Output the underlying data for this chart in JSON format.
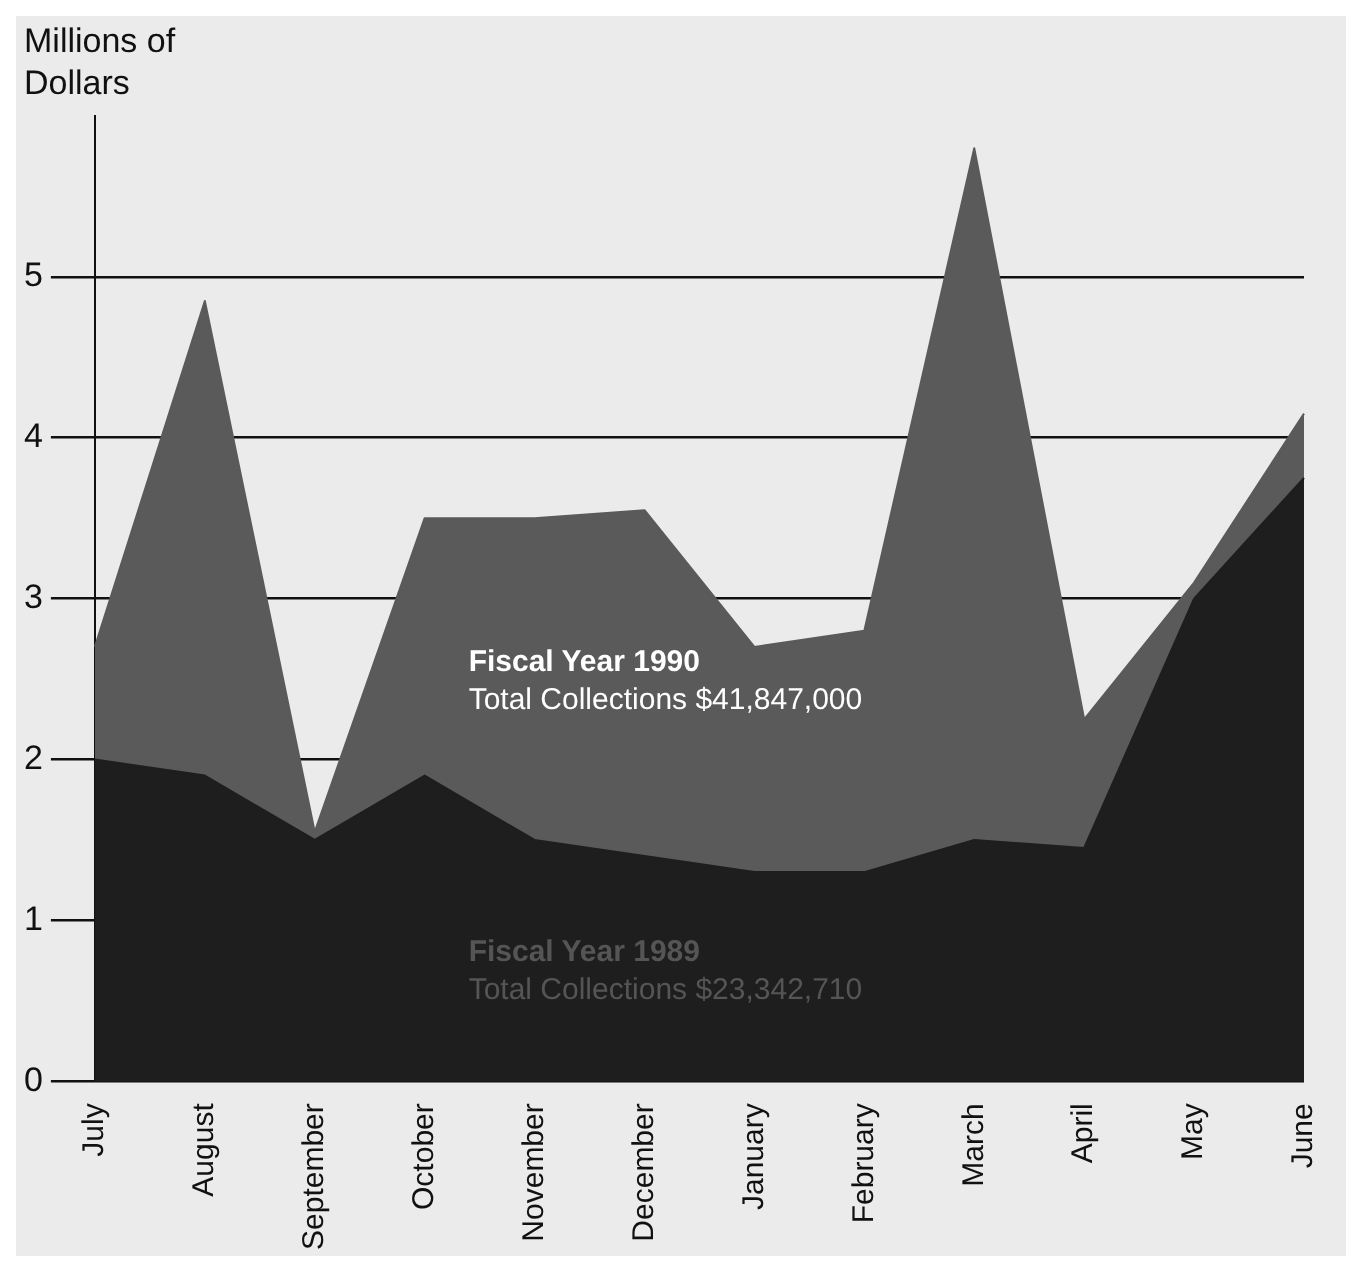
{
  "chart_data": {
    "type": "area",
    "ylabel": "Millions of Dollars",
    "categories": [
      "July",
      "August",
      "September",
      "October",
      "November",
      "December",
      "January",
      "February",
      "March",
      "April",
      "May",
      "June"
    ],
    "series": [
      {
        "name": "Fiscal Year 1990",
        "color": "#5a5a5a",
        "values": [
          2.7,
          4.85,
          1.55,
          3.5,
          3.5,
          3.55,
          2.7,
          2.8,
          5.8,
          2.25,
          3.1,
          4.15
        ]
      },
      {
        "name": "Fiscal Year 1989",
        "color": "#1e1e1e",
        "values": [
          2.0,
          1.9,
          1.5,
          1.9,
          1.5,
          1.4,
          1.3,
          1.3,
          1.5,
          1.45,
          3.0,
          3.75
        ]
      }
    ],
    "annotations": [
      "Total Collections $41,847,000",
      "Total Collections $23,342,710"
    ],
    "ylim": [
      0,
      6
    ],
    "yticks": [
      0,
      1,
      2,
      3,
      4,
      5
    ],
    "grid": "y",
    "legend": false
  }
}
